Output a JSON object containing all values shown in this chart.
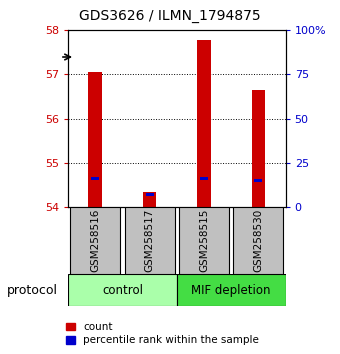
{
  "title": "GDS3626 / ILMN_1794875",
  "samples": [
    "GSM258516",
    "GSM258517",
    "GSM258515",
    "GSM258530"
  ],
  "groups": [
    {
      "label": "control",
      "indices": [
        0,
        1
      ],
      "color": "#aaffaa"
    },
    {
      "label": "MIF depletion",
      "indices": [
        2,
        3
      ],
      "color": "#44dd44"
    }
  ],
  "red_values": [
    57.05,
    54.35,
    57.78,
    56.65
  ],
  "blue_values": [
    54.64,
    54.28,
    54.64,
    54.6
  ],
  "ylim": [
    54,
    58
  ],
  "yticks_left": [
    54,
    55,
    56,
    57,
    58
  ],
  "yticks_right": [
    0,
    25,
    50,
    75,
    100
  ],
  "bar_width": 0.25,
  "bar_color": "#cc0000",
  "blue_color": "#0000cc",
  "left_tick_color": "#cc0000",
  "right_tick_color": "#0000cc",
  "sample_box_color": "#c0c0c0",
  "background_color": "#ffffff",
  "legend_red_label": "count",
  "legend_blue_label": "percentile rank within the sample",
  "protocol_label": "protocol"
}
